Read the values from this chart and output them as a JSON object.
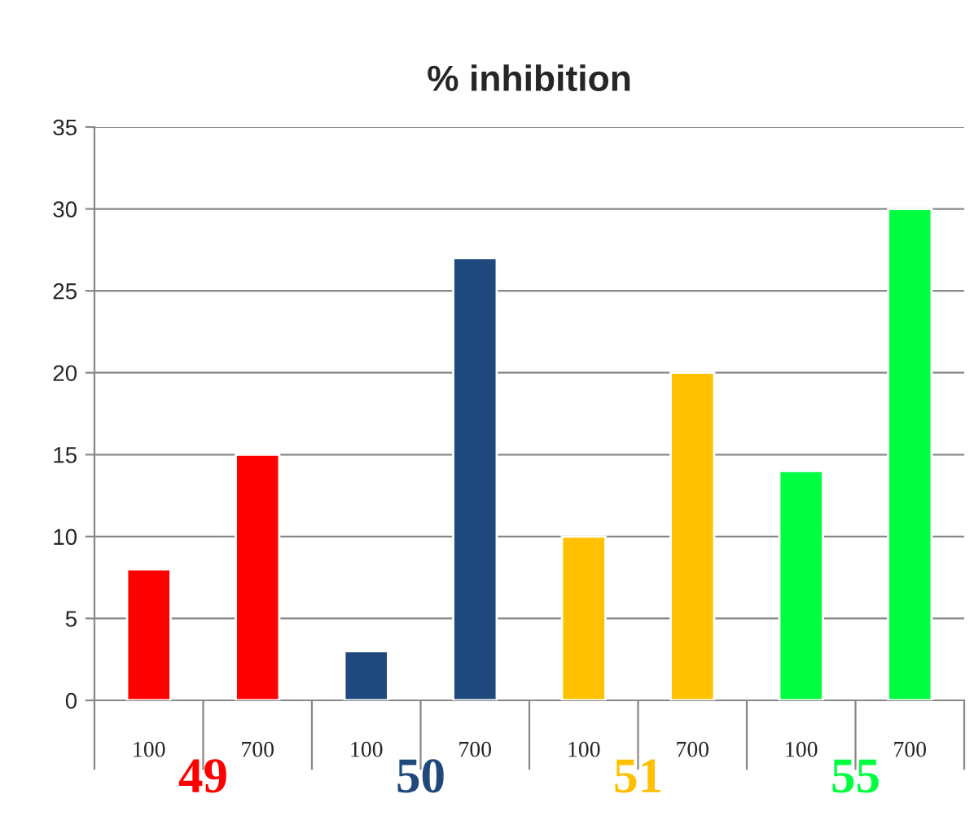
{
  "chart_data": {
    "type": "bar",
    "title": "% inhibition",
    "categories": [
      "100",
      "700",
      "100",
      "700",
      "100",
      "700",
      "100",
      "700"
    ],
    "series": [
      {
        "name": "49",
        "color": "#ff0000",
        "values": [
          8,
          15,
          null,
          null,
          null,
          null,
          null,
          null
        ]
      },
      {
        "name": "50",
        "color": "#1f497d",
        "values": [
          null,
          null,
          3,
          27,
          null,
          null,
          null,
          null
        ]
      },
      {
        "name": "51",
        "color": "#ffc000",
        "values": [
          null,
          null,
          null,
          null,
          10,
          20,
          null,
          null
        ]
      },
      {
        "name": "55",
        "color": "#00ff40",
        "values": [
          null,
          null,
          null,
          null,
          null,
          null,
          14,
          30
        ]
      }
    ],
    "ylim": [
      0,
      35
    ],
    "yticks": [
      0,
      5,
      10,
      15,
      20,
      25,
      30,
      35
    ],
    "grid": "y",
    "legend": false
  }
}
